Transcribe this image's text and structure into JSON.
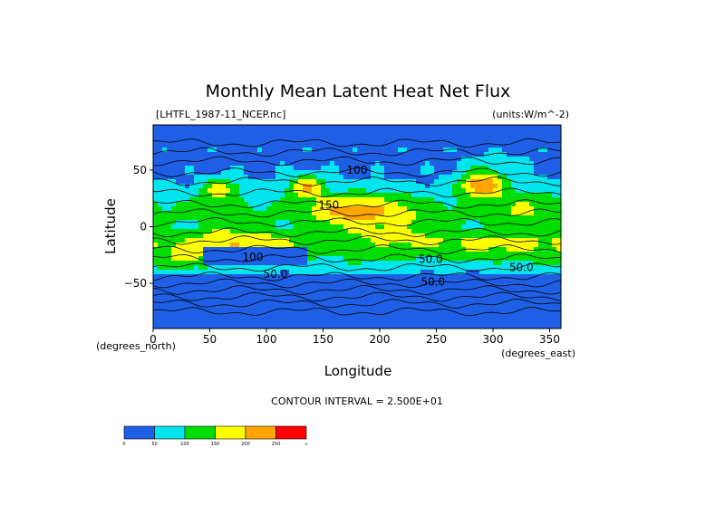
{
  "chart_data": {
    "type": "heatmap",
    "title": "Monthly Mean Latent Heat Net Flux",
    "file_label": "[LHTFL_1987-11_NCEP.nc]",
    "units_label": "(units:W/m^-2)",
    "xlabel": "Longitude",
    "ylabel": "Latitude",
    "x_unit_label": "(degrees_east)",
    "y_unit_label": "(degrees_north)",
    "xlim": [
      0,
      360
    ],
    "ylim": [
      -90,
      90
    ],
    "x_ticks": [
      0,
      50,
      100,
      150,
      200,
      250,
      300,
      350
    ],
    "y_ticks": [
      50,
      0,
      -50
    ],
    "y_tick_labels": [
      "50",
      "0",
      "−50"
    ],
    "contour_interval_text": "CONTOUR INTERVAL = 2.500E+01",
    "contour_labels": [
      {
        "text": "100",
        "lon": 180,
        "lat": 47
      },
      {
        "text": "150",
        "lon": 155,
        "lat": 16
      },
      {
        "text": "100",
        "lon": 88,
        "lat": -30
      },
      {
        "text": "50.0",
        "lon": 108,
        "lat": -45
      },
      {
        "text": "50.0",
        "lon": 245,
        "lat": -32
      },
      {
        "text": "50.0",
        "lon": 247,
        "lat": -52
      },
      {
        "text": "50.0",
        "lon": 325,
        "lat": -39
      }
    ],
    "color_levels": [
      {
        "min": 0,
        "max": 50,
        "color": "#1f5fe6"
      },
      {
        "min": 50,
        "max": 100,
        "color": "#00e5ee"
      },
      {
        "min": 100,
        "max": 150,
        "color": "#00dd00"
      },
      {
        "min": 150,
        "max": 200,
        "color": "#ffff00"
      },
      {
        "min": 200,
        "max": 250,
        "color": "#ffa600"
      },
      {
        "min": 250,
        "max": 300,
        "color": "#ff0000"
      }
    ],
    "colorbar_tick_labels": [
      "0",
      "50",
      "100",
      "150",
      "200",
      "250",
      "∞"
    ],
    "grid": false,
    "legend": "bottom-left colorbar"
  }
}
